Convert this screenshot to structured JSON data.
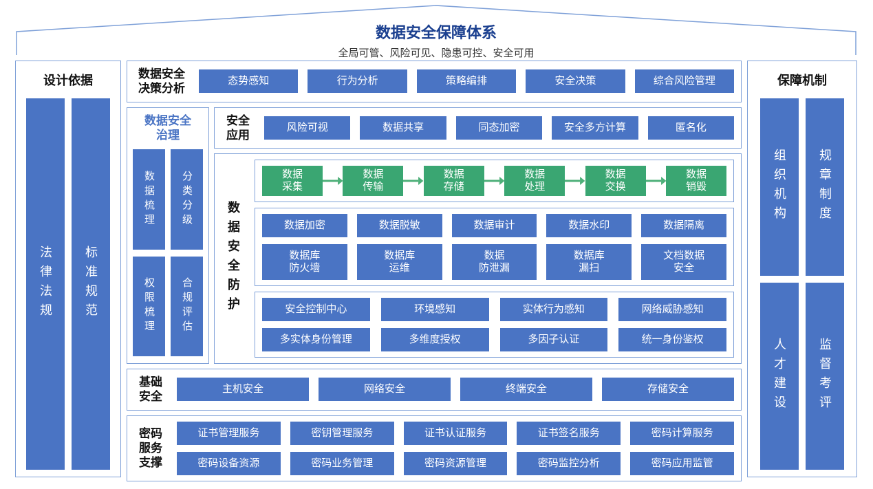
{
  "colors": {
    "primary": "#4a74c4",
    "green": "#3aa672",
    "border": "#7ea0d8",
    "title": "#1a3f8f",
    "text": "#111111",
    "arrow": "#4fb07a",
    "bg": "#ffffff"
  },
  "header": {
    "title": "数据安全保障体系",
    "subtitle": "全局可管、风险可见、隐患可控、安全可用"
  },
  "left": {
    "title": "设计依据",
    "pillars": [
      "法律法规",
      "标准规范"
    ]
  },
  "right": {
    "title": "保障机制",
    "top": [
      "组织机构",
      "规章制度"
    ],
    "bottom": [
      "人才建设",
      "监督考评"
    ]
  },
  "decision": {
    "label": "数据安全\n决策分析",
    "items": [
      "态势感知",
      "行为分析",
      "策略编排",
      "安全决策",
      "综合风险管理"
    ]
  },
  "governance": {
    "title": "数据安全\n治理",
    "pair1": [
      "数据梳理",
      "分类分级"
    ],
    "pair2": [
      "权限梳理",
      "合规评估"
    ]
  },
  "app": {
    "label": "安全\n应用",
    "items": [
      "风险可视",
      "数据共享",
      "同态加密",
      "安全多方计算",
      "匿名化"
    ]
  },
  "protect": {
    "label": "数据安全防护",
    "flow": [
      "数据\n采集",
      "数据\n传输",
      "数据\n存储",
      "数据\n处理",
      "数据\n交换",
      "数据\n销毁"
    ],
    "grid1": [
      "数据加密",
      "数据脱敏",
      "数据审计",
      "数据水印",
      "数据隔离",
      "数据库\n防火墙",
      "数据库\n运维",
      "数据\n防泄漏",
      "数据库\n漏扫",
      "文档数据\n安全"
    ],
    "grid2": [
      "安全控制中心",
      "环境感知",
      "实体行为感知",
      "网络威胁感知",
      "多实体身份管理",
      "多维度授权",
      "多因子认证",
      "统一身份鉴权"
    ]
  },
  "base": {
    "label": "基础\n安全",
    "items": [
      "主机安全",
      "网络安全",
      "终端安全",
      "存储安全"
    ]
  },
  "crypto": {
    "label": "密码\n服务\n支撑",
    "items": [
      "证书管理服务",
      "密钥管理服务",
      "证书认证服务",
      "证书签名服务",
      "密码计算服务",
      "密码设备资源",
      "密码业务管理",
      "密码资源管理",
      "密码监控分析",
      "密码应用监管"
    ]
  }
}
